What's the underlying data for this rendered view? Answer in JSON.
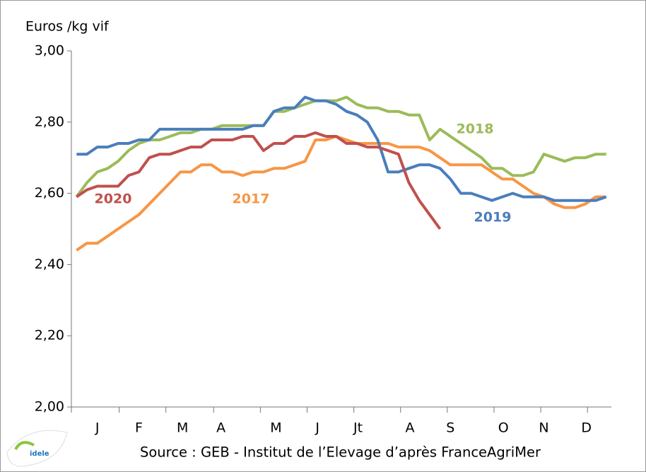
{
  "chart_data": {
    "type": "line",
    "y_label": "Euros /kg vif",
    "source": "Source : GEB - Institut de l’Elevage d’après FranceAgriMer",
    "logo": "idele",
    "x": [
      1,
      2,
      3,
      4,
      5,
      6,
      7,
      8,
      9,
      10,
      11,
      12,
      13,
      14,
      15,
      16,
      17,
      18,
      19,
      20,
      21,
      22,
      23,
      24,
      25,
      26,
      27,
      28,
      29,
      30,
      31,
      32,
      33,
      34,
      35,
      36,
      37,
      38,
      39,
      40,
      41,
      42,
      43,
      44,
      45,
      46,
      47,
      48,
      49,
      50,
      51,
      52
    ],
    "xlim": [
      0.5,
      52.5
    ],
    "xticks": [
      {
        "value": 3.0,
        "label": "J"
      },
      {
        "value": 7.0,
        "label": "F"
      },
      {
        "value": 11.2,
        "label": "M"
      },
      {
        "value": 14.9,
        "label": "A"
      },
      {
        "value": 20.2,
        "label": "M"
      },
      {
        "value": 24.2,
        "label": "J"
      },
      {
        "value": 28.1,
        "label": "Jt"
      },
      {
        "value": 33.1,
        "label": "A"
      },
      {
        "value": 37.0,
        "label": "S"
      },
      {
        "value": 42.1,
        "label": "O"
      },
      {
        "value": 46.0,
        "label": "N"
      },
      {
        "value": 50.1,
        "label": "D"
      }
    ],
    "xtick_marks": [
      0.5,
      5.1,
      9.6,
      14.2,
      18.7,
      23.2,
      27.7,
      32.2,
      36.7,
      41.2,
      45.7,
      50.2
    ],
    "ylim": [
      2.0,
      3.0
    ],
    "yticks": [
      {
        "value": 2.0,
        "label": "2,00"
      },
      {
        "value": 2.2,
        "label": "2,20"
      },
      {
        "value": 2.4,
        "label": "2,40"
      },
      {
        "value": 2.6,
        "label": "2,60"
      },
      {
        "value": 2.8,
        "label": "2,80"
      },
      {
        "value": 3.0,
        "label": "3,00"
      }
    ],
    "series": [
      {
        "name": "2017",
        "color": "#f79646",
        "values": [
          2.44,
          2.46,
          2.46,
          2.48,
          2.5,
          2.52,
          2.54,
          2.57,
          2.6,
          2.63,
          2.66,
          2.66,
          2.68,
          2.68,
          2.66,
          2.66,
          2.65,
          2.66,
          2.66,
          2.67,
          2.67,
          2.68,
          2.69,
          2.75,
          2.75,
          2.76,
          2.75,
          2.74,
          2.74,
          2.74,
          2.74,
          2.73,
          2.73,
          2.73,
          2.72,
          2.7,
          2.68,
          2.68,
          2.68,
          2.68,
          2.66,
          2.64,
          2.64,
          2.62,
          2.6,
          2.59,
          2.57,
          2.56,
          2.56,
          2.57,
          2.59,
          2.59
        ]
      },
      {
        "name": "2018",
        "color": "#9bbb59",
        "values": [
          2.59,
          2.63,
          2.66,
          2.67,
          2.69,
          2.72,
          2.74,
          2.75,
          2.75,
          2.76,
          2.77,
          2.77,
          2.78,
          2.78,
          2.79,
          2.79,
          2.79,
          2.79,
          2.79,
          2.83,
          2.83,
          2.84,
          2.85,
          2.86,
          2.86,
          2.86,
          2.87,
          2.85,
          2.84,
          2.84,
          2.83,
          2.83,
          2.82,
          2.82,
          2.75,
          2.78,
          2.76,
          2.74,
          2.72,
          2.7,
          2.67,
          2.67,
          2.65,
          2.65,
          2.66,
          2.71,
          2.7,
          2.69,
          2.7,
          2.7,
          2.71,
          2.71
        ]
      },
      {
        "name": "2019",
        "color": "#4a7ebb",
        "values": [
          2.71,
          2.71,
          2.73,
          2.73,
          2.74,
          2.74,
          2.75,
          2.75,
          2.78,
          2.78,
          2.78,
          2.78,
          2.78,
          2.78,
          2.78,
          2.78,
          2.78,
          2.79,
          2.79,
          2.83,
          2.84,
          2.84,
          2.87,
          2.86,
          2.86,
          2.85,
          2.83,
          2.82,
          2.8,
          2.75,
          2.66,
          2.66,
          2.67,
          2.68,
          2.68,
          2.67,
          2.64,
          2.6,
          2.6,
          2.59,
          2.58,
          2.59,
          2.6,
          2.59,
          2.59,
          2.59,
          2.58,
          2.58,
          2.58,
          2.58,
          2.58,
          2.59
        ]
      },
      {
        "name": "2020",
        "color": "#c0504d",
        "values": [
          2.59,
          2.61,
          2.62,
          2.62,
          2.62,
          2.65,
          2.66,
          2.7,
          2.71,
          2.71,
          2.72,
          2.73,
          2.73,
          2.75,
          2.75,
          2.75,
          2.76,
          2.76,
          2.72,
          2.74,
          2.74,
          2.76,
          2.76,
          2.77,
          2.76,
          2.76,
          2.74,
          2.74,
          2.73,
          2.73,
          2.72,
          2.71,
          2.63,
          2.58,
          2.54,
          2.5,
          null,
          null,
          null,
          null,
          null,
          null,
          null,
          null,
          null,
          null,
          null,
          null,
          null,
          null,
          null,
          null
        ]
      }
    ]
  }
}
